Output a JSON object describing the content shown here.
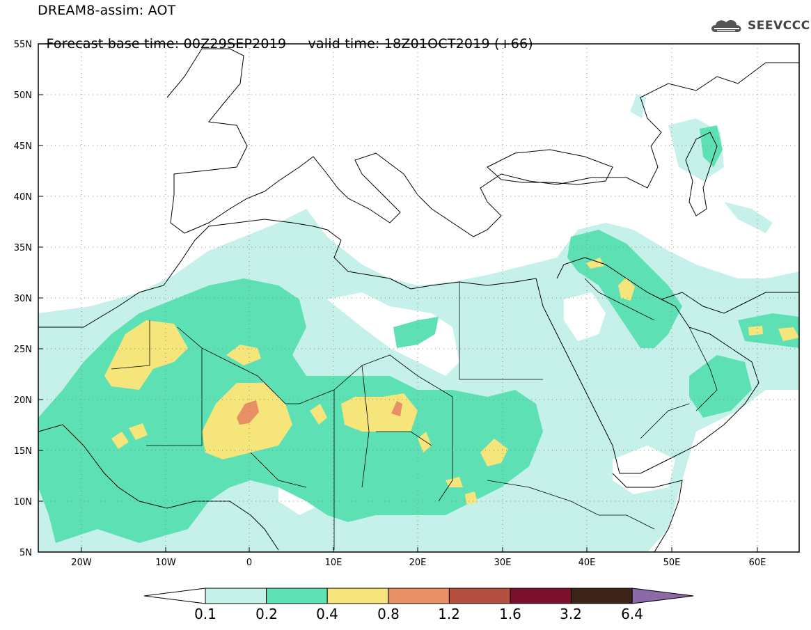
{
  "header": {
    "line1": "DREAM8-assim: AOT",
    "base_time_label": "Forecast base time: 00Z29SEP2019",
    "valid_time_label": "valid time: 18Z01OCT2019 (+66)"
  },
  "logo": {
    "text": "SEEVCCC",
    "icon": "cloud-icon"
  },
  "map": {
    "lon_range": [
      -25,
      65
    ],
    "lat_range": [
      5,
      55
    ],
    "lat_labels": [
      "55N",
      "50N",
      "45N",
      "40N",
      "35N",
      "30N",
      "25N",
      "20N",
      "15N",
      "10N",
      "5N"
    ],
    "lon_labels": [
      "20W",
      "10W",
      "0",
      "10E",
      "20E",
      "30E",
      "40E",
      "50E",
      "60E"
    ],
    "grid": "dotted"
  },
  "legend": {
    "thresholds": [
      "0.1",
      "0.2",
      "0.4",
      "0.8",
      "1.2",
      "1.6",
      "3.2",
      "6.4"
    ],
    "colors": [
      "#ffffff",
      "#c6f1ea",
      "#5ee0b5",
      "#f5e57a",
      "#e88f66",
      "#b44f41",
      "#7d0f2e",
      "#3d2418",
      "#8c6aa8"
    ]
  }
}
